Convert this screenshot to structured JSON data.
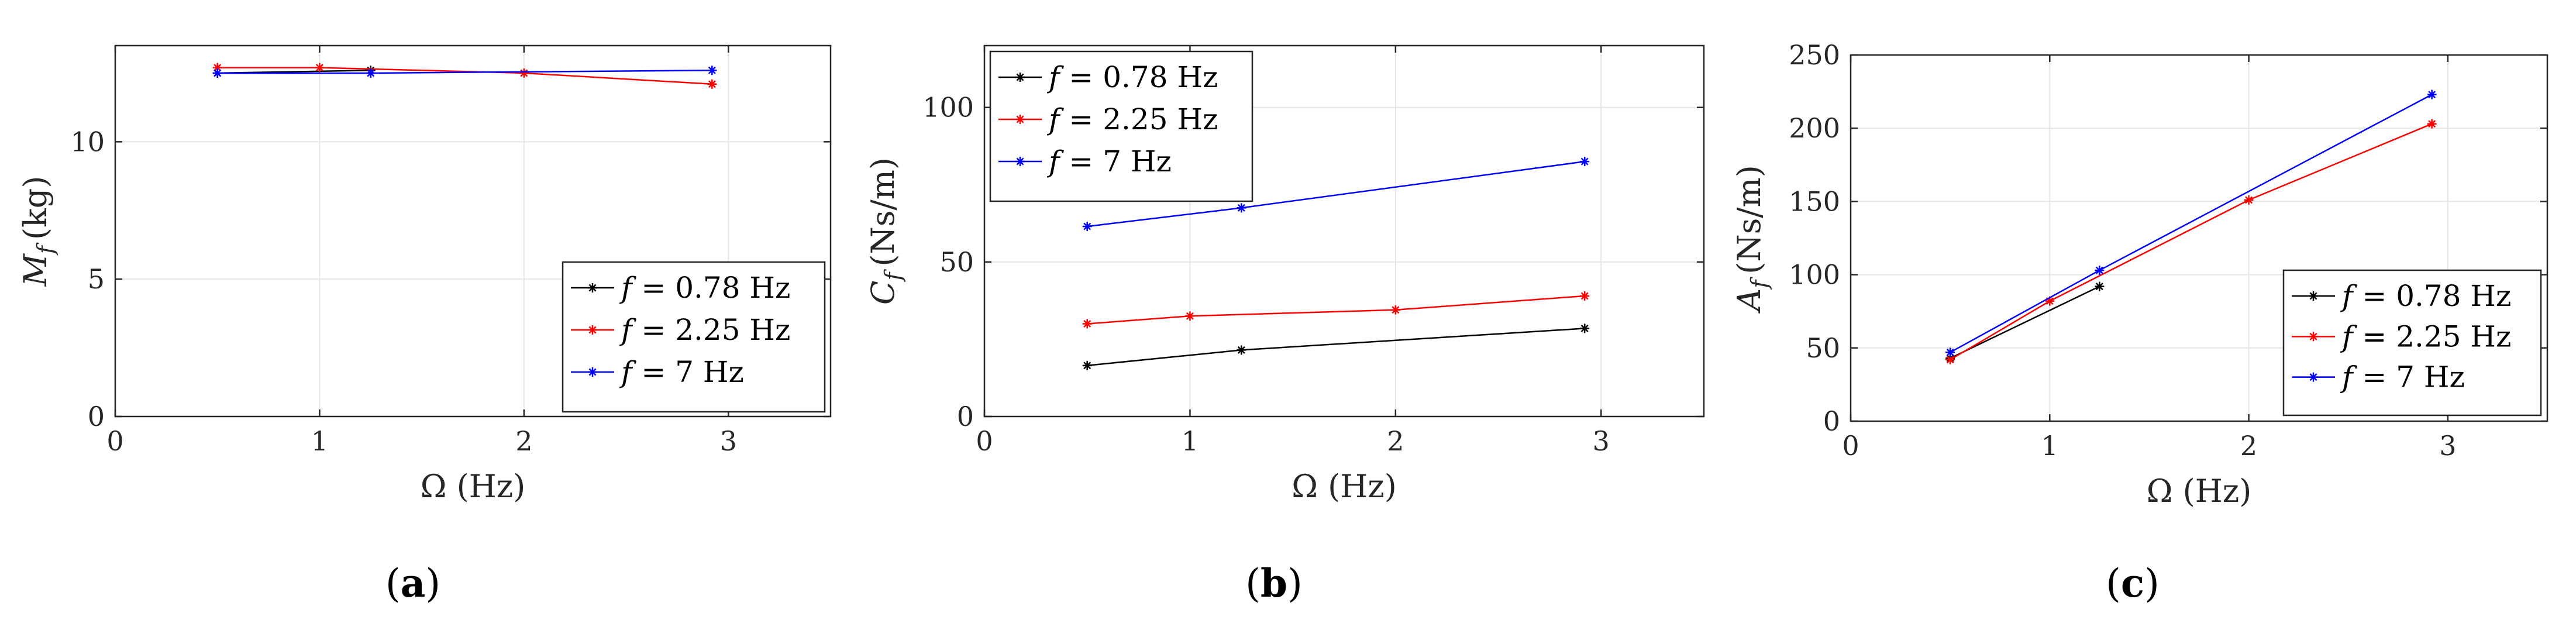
{
  "chart_data": [
    {
      "type": "line",
      "xlabel": "Ω (Hz)",
      "ylabel_main": "M",
      "ylabel_sub": "f",
      "ylabel_unit": "(kg)",
      "xlim": [
        0,
        3.5
      ],
      "ylim": [
        0,
        13.5
      ],
      "xticks": [
        0,
        1,
        2,
        3
      ],
      "yticks": [
        0,
        5,
        10
      ],
      "grid": true,
      "legend_position": "lower-right",
      "caption": "a",
      "series": [
        {
          "name": "f = 0.78 Hz",
          "legend_italic": "f",
          "legend_rest": " = 0.78 Hz",
          "color": "#000000",
          "x": [
            0.5,
            1.25
          ],
          "y": [
            12.5,
            12.6
          ]
        },
        {
          "name": "f = 2.25 Hz",
          "legend_italic": "f",
          "legend_rest": " = 2.25 Hz",
          "color": "#ff0000",
          "x": [
            0.5,
            1.0,
            2.0,
            2.92
          ],
          "y": [
            12.7,
            12.7,
            12.5,
            12.1
          ]
        },
        {
          "name": "f = 7 Hz",
          "legend_italic": "f",
          "legend_rest": " = 7 Hz",
          "color": "#0000ff",
          "x": [
            0.5,
            1.25,
            2.92
          ],
          "y": [
            12.5,
            12.5,
            12.6
          ]
        }
      ]
    },
    {
      "type": "line",
      "xlabel": "Ω (Hz)",
      "ylabel_main": "C",
      "ylabel_sub": "f",
      "ylabel_unit": "(Ns/m)",
      "xlim": [
        0,
        3.5
      ],
      "ylim": [
        0,
        120
      ],
      "xticks": [
        0,
        1,
        2,
        3
      ],
      "yticks": [
        0,
        50,
        100
      ],
      "grid": true,
      "legend_position": "upper-left",
      "caption": "b",
      "series": [
        {
          "name": "f = 0.78 Hz",
          "legend_italic": "f",
          "legend_rest": " = 0.78 Hz",
          "color": "#000000",
          "x": [
            0.5,
            1.25,
            2.92
          ],
          "y": [
            16.5,
            21.5,
            28.5
          ]
        },
        {
          "name": "f = 2.25 Hz",
          "legend_italic": "f",
          "legend_rest": " = 2.25 Hz",
          "color": "#ff0000",
          "x": [
            0.5,
            1.0,
            2.0,
            2.92
          ],
          "y": [
            30,
            32.5,
            34.5,
            39
          ]
        },
        {
          "name": "f = 7 Hz",
          "legend_italic": "f",
          "legend_rest": " = 7 Hz",
          "color": "#0000ff",
          "x": [
            0.5,
            1.25,
            2.92
          ],
          "y": [
            61.5,
            67.5,
            82.5
          ]
        }
      ]
    },
    {
      "type": "line",
      "xlabel": "Ω (Hz)",
      "ylabel_main": "A",
      "ylabel_sub": "f",
      "ylabel_unit": "(Ns/m)",
      "xlim": [
        0,
        3.5
      ],
      "ylim": [
        0,
        250
      ],
      "xticks": [
        0,
        1,
        2,
        3
      ],
      "yticks": [
        0,
        50,
        100,
        150,
        200,
        250
      ],
      "grid": true,
      "legend_position": "lower-right",
      "caption": "c",
      "series": [
        {
          "name": "f = 0.78 Hz",
          "legend_italic": "f",
          "legend_rest": " = 0.78 Hz",
          "color": "#000000",
          "x": [
            0.5,
            1.25
          ],
          "y": [
            43,
            92
          ]
        },
        {
          "name": "f = 2.25 Hz",
          "legend_italic": "f",
          "legend_rest": " = 2.25 Hz",
          "color": "#ff0000",
          "x": [
            0.5,
            1.0,
            2.0,
            2.92
          ],
          "y": [
            42,
            82,
            151,
            203
          ]
        },
        {
          "name": "f = 7 Hz",
          "legend_italic": "f",
          "legend_rest": " = 7 Hz",
          "color": "#0000ff",
          "x": [
            0.5,
            1.25,
            2.92
          ],
          "y": [
            47,
            103,
            223
          ]
        }
      ]
    }
  ]
}
